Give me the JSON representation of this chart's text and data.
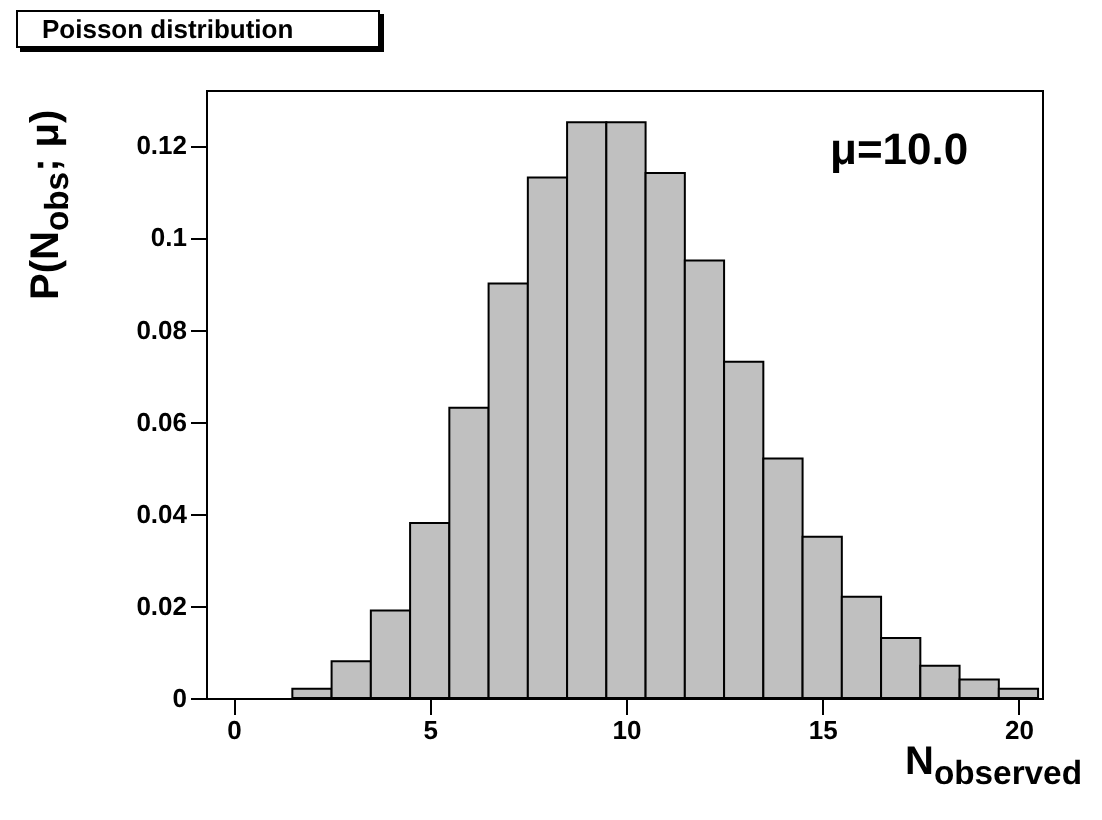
{
  "chart_data": {
    "type": "histogram",
    "title": "Poisson distribution",
    "xlabel": "N$_{observed}$",
    "ylabel": "P(N$_{obs}$; μ)",
    "annotations": [
      "μ=10.0"
    ],
    "bins": [
      1.5,
      2.5,
      3.5,
      4.5,
      5.5,
      6.5,
      7.5,
      8.5,
      9.5,
      10.5,
      11.5,
      12.5,
      13.5,
      14.5,
      15.5,
      16.5,
      17.5,
      18.5,
      19.5,
      20.5
    ],
    "values": [
      0.002,
      0.008,
      0.019,
      0.038,
      0.063,
      0.09,
      0.113,
      0.125,
      0.125,
      0.114,
      0.095,
      0.073,
      0.052,
      0.035,
      0.022,
      0.013,
      0.007,
      0.004,
      0.002
    ],
    "color": "#c0c0c0",
    "xlim": [
      -0.7,
      20.6
    ],
    "xticks": [
      0,
      5,
      10,
      15,
      20
    ],
    "ylim": [
      0,
      0.132
    ],
    "yticks": [
      0,
      0.02,
      0.04,
      0.06,
      0.08,
      0.1,
      0.12
    ],
    "grid": false
  }
}
